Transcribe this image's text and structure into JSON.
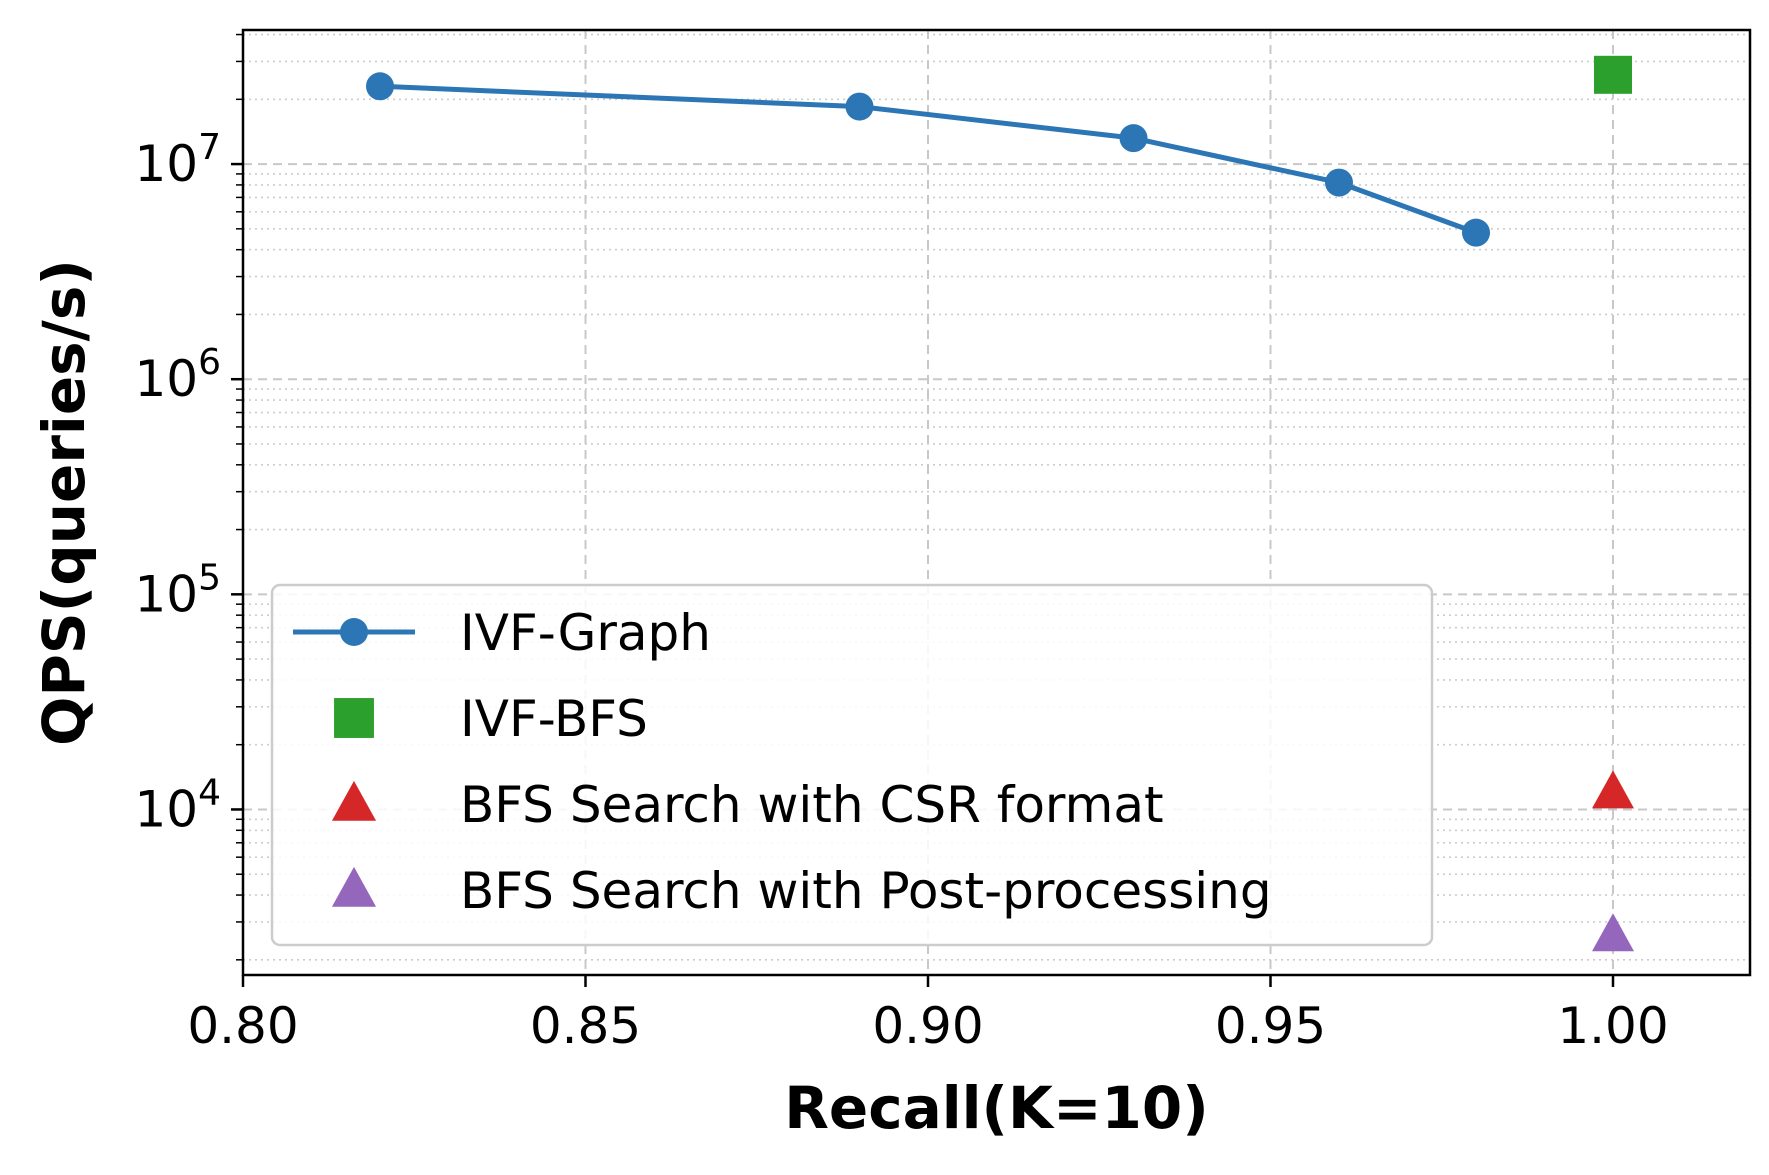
{
  "chart_data": {
    "type": "line",
    "xlabel": "Recall(K=10)",
    "ylabel": "QPS(queries/s)",
    "xlim": [
      0.8,
      1.02
    ],
    "ylim": [
      1700,
      42000000
    ],
    "yscale": "log",
    "x_ticks": [
      "0.80",
      "0.85",
      "0.90",
      "0.95",
      "1.00"
    ],
    "y_ticks": [
      {
        "base": "10",
        "exp": "4",
        "value": 10000
      },
      {
        "base": "10",
        "exp": "5",
        "value": 100000
      },
      {
        "base": "10",
        "exp": "6",
        "value": 1000000
      },
      {
        "base": "10",
        "exp": "7",
        "value": 10000000
      }
    ],
    "grid": true,
    "legend_position": "lower-left",
    "series": [
      {
        "name": "IVF-Graph",
        "marker": "circle",
        "line": true,
        "color": "#2c76b5",
        "x": [
          0.82,
          0.89,
          0.93,
          0.96,
          0.98
        ],
        "y": [
          23000000,
          18500000,
          13200000,
          8200000,
          4800000
        ]
      },
      {
        "name": "IVF-BFS",
        "marker": "square",
        "line": false,
        "color": "#2ca02c",
        "x": [
          1.0
        ],
        "y": [
          26000000
        ]
      },
      {
        "name": "BFS Search with CSR format",
        "marker": "triangle",
        "line": false,
        "color": "#d62728",
        "x": [
          1.0
        ],
        "y": [
          12000
        ]
      },
      {
        "name": "BFS Search with Post-processing",
        "marker": "triangle",
        "line": false,
        "color": "#9467bd",
        "x": [
          1.0
        ],
        "y": [
          2600
        ]
      }
    ]
  }
}
